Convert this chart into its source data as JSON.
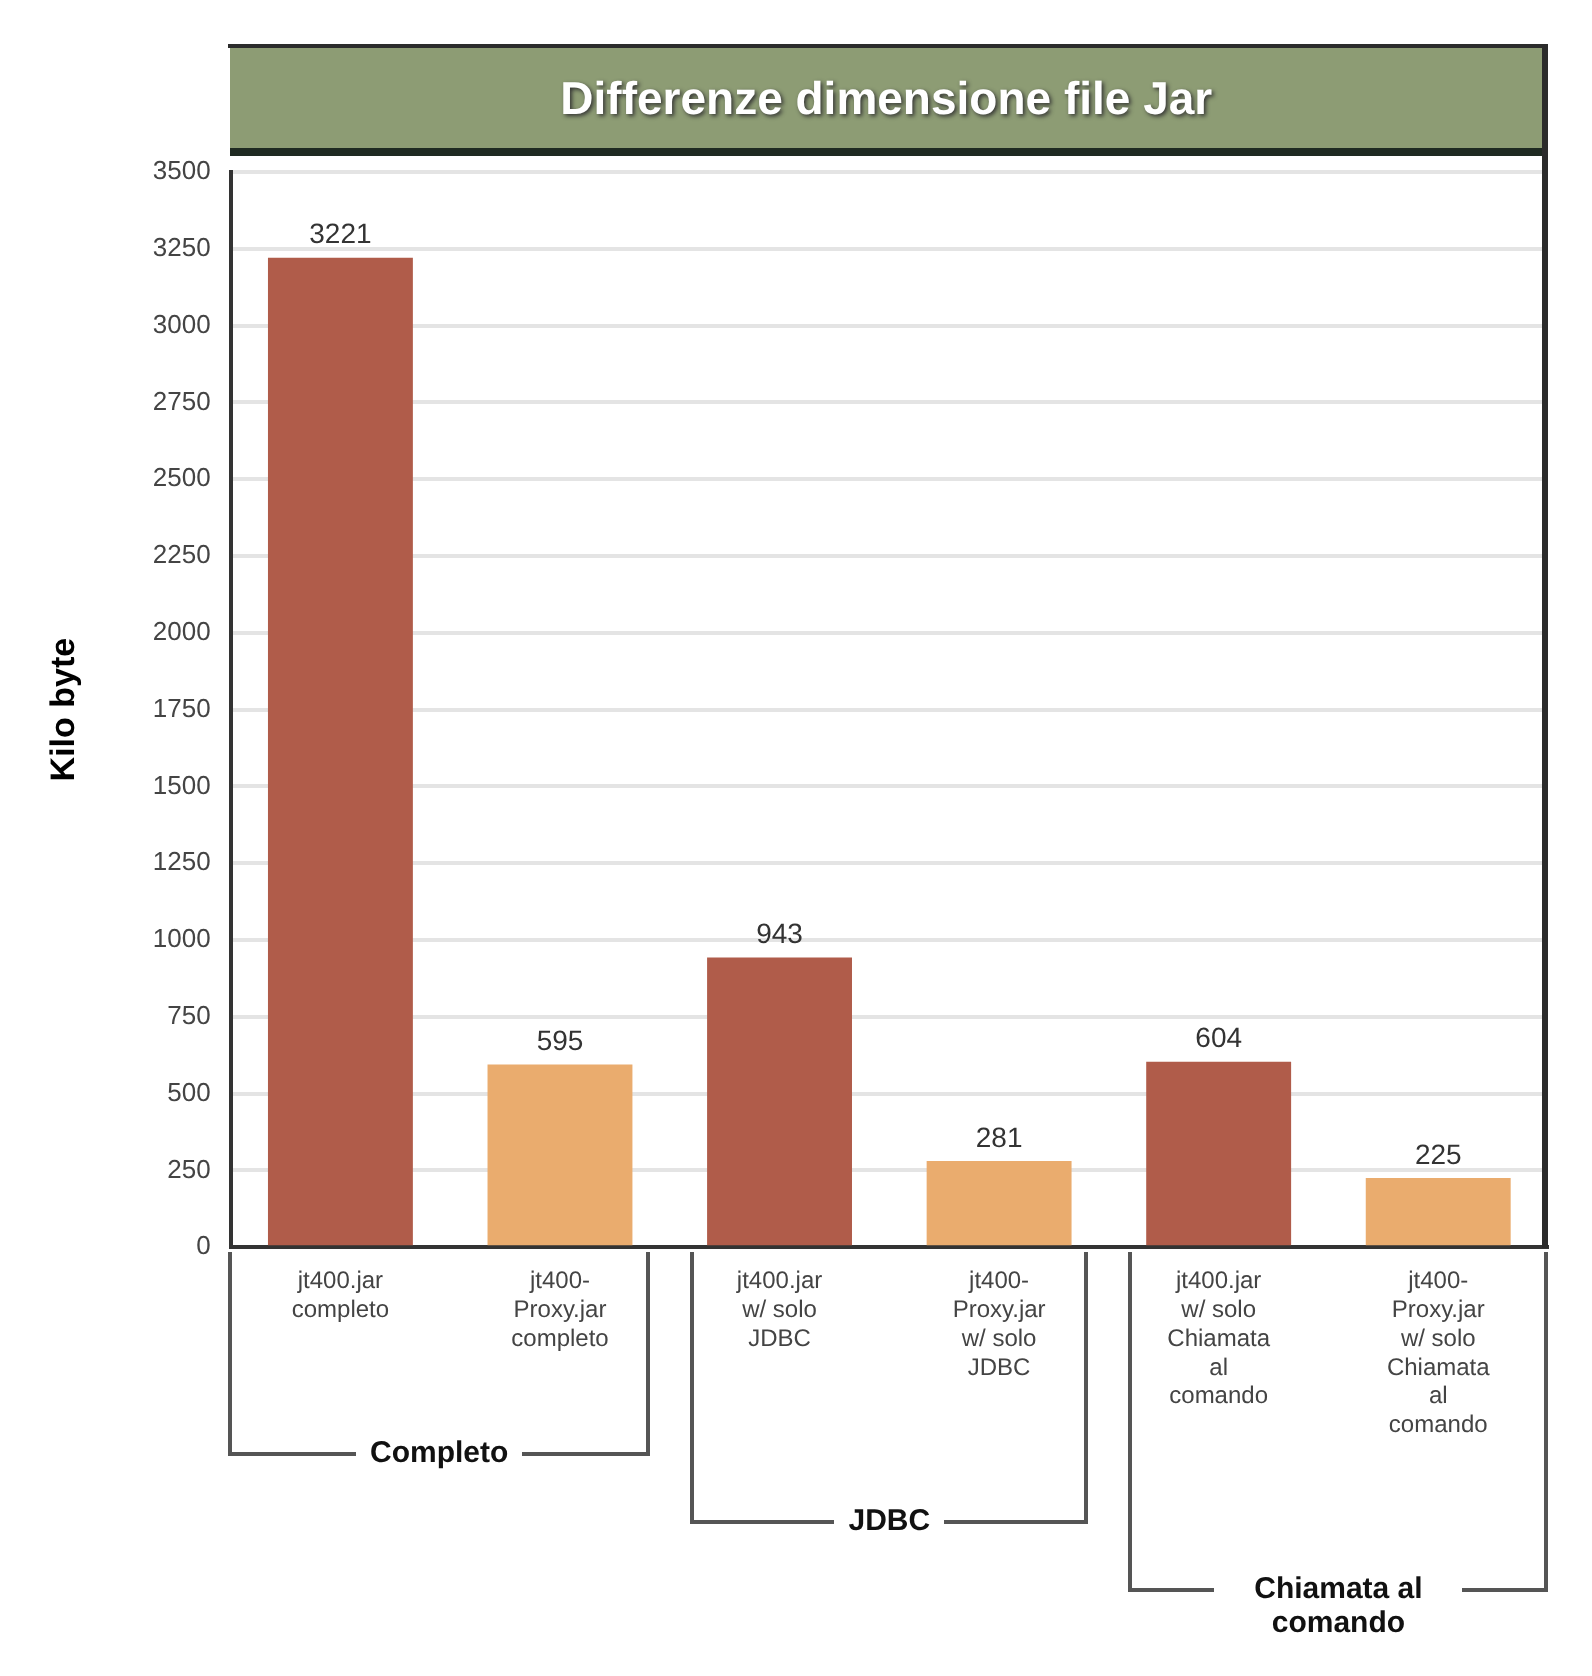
{
  "chart_data": {
    "type": "bar",
    "title": "Differenze dimensione file Jar",
    "ylabel": "Kilo byte",
    "categories": [
      "jt400.jar completo",
      "jt400-Proxy.jar completo",
      "jt400.jar w/ solo JDBC",
      "jt400-Proxy.jar w/ solo JDBC",
      "jt400.jar w/ solo Chiamata al comando",
      "jt400-Proxy.jar w/ solo Chiamata al comando"
    ],
    "values": [
      3221,
      595,
      943,
      281,
      604,
      225
    ],
    "colors": [
      "#b05c4a",
      "#eaac6e",
      "#b05c4a",
      "#eaac6e",
      "#b05c4a",
      "#eaac6e"
    ],
    "ylim": [
      0,
      3500
    ],
    "yticks": [
      0,
      250,
      500,
      750,
      1000,
      1250,
      1500,
      1750,
      2000,
      2250,
      2500,
      2750,
      3000,
      3250,
      3500
    ],
    "grid": "y",
    "data_labels": true,
    "annotations": [
      "Completo",
      "JDBC",
      "Chiamata al comando"
    ]
  }
}
